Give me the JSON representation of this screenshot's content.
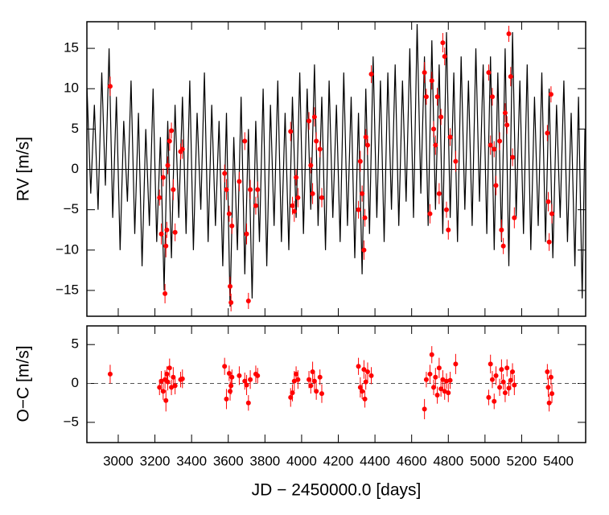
{
  "chart_data": [
    {
      "type": "scatter",
      "ylabel": "RV [m/s]",
      "xlim": [
        2829,
        5549
      ],
      "ylim": [
        -18.2,
        18.3
      ],
      "yticks": [
        {
          "value": -15,
          "label": "−15"
        },
        {
          "value": -10,
          "label": "−10"
        },
        {
          "value": -5,
          "label": "−5"
        },
        0,
        5,
        10,
        15
      ],
      "zero_line": "solid",
      "model": {
        "color": "#000000",
        "x": [
          2830,
          2850,
          2870,
          2890,
          2910,
          2930,
          2950,
          2970,
          2990,
          3010,
          3030,
          3050,
          3070,
          3090,
          3110,
          3130,
          3150,
          3170,
          3190,
          3210,
          3230,
          3250,
          3270,
          3290,
          3310,
          3330,
          3350,
          3370,
          3390,
          3410,
          3430,
          3450,
          3470,
          3490,
          3510,
          3530,
          3550,
          3570,
          3590,
          3610,
          3630,
          3650,
          3670,
          3690,
          3710,
          3730,
          3750,
          3770,
          3790,
          3810,
          3830,
          3850,
          3870,
          3890,
          3910,
          3930,
          3950,
          3970,
          3990,
          4010,
          4030,
          4050,
          4070,
          4090,
          4110,
          4130,
          4150,
          4170,
          4190,
          4210,
          4230,
          4250,
          4270,
          4290,
          4310,
          4330,
          4350,
          4370,
          4390,
          4410,
          4430,
          4450,
          4470,
          4490,
          4510,
          4530,
          4550,
          4570,
          4590,
          4610,
          4630,
          4650,
          4670,
          4690,
          4710,
          4730,
          4750,
          4770,
          4790,
          4810,
          4830,
          4850,
          4870,
          4890,
          4910,
          4930,
          4950,
          4970,
          4990,
          5010,
          5030,
          5050,
          5070,
          5090,
          5110,
          5130,
          5150,
          5170,
          5190,
          5210,
          5230,
          5250,
          5270,
          5290,
          5310,
          5330,
          5350,
          5370,
          5390,
          5410,
          5430,
          5450,
          5470,
          5490,
          5510,
          5530,
          5545
        ],
        "values": [
          10,
          -3,
          8,
          -5,
          12,
          -2,
          15,
          -6,
          9,
          -10,
          6,
          -4,
          11,
          -8,
          7,
          -12,
          5,
          -7,
          10,
          -9,
          4,
          -15,
          6,
          -11,
          8,
          -6,
          9,
          -8,
          11,
          -10,
          7,
          -5,
          12,
          -9,
          8,
          -7,
          6,
          -12,
          7,
          -17,
          4,
          -10,
          9,
          -13,
          5,
          -16,
          6,
          -9,
          10,
          -12,
          8,
          -7,
          11,
          -9,
          7,
          -10,
          9,
          -6,
          12,
          -8,
          10,
          -5,
          13,
          -7,
          9,
          -10,
          11,
          -6,
          8,
          -9,
          12,
          -7,
          9,
          -11,
          7,
          -13,
          10,
          -8,
          14,
          -6,
          11,
          -9,
          12,
          -5,
          13,
          -7,
          11,
          -4,
          15,
          -6,
          18,
          -3,
          14,
          -7,
          16,
          -5,
          13,
          -8,
          17,
          -6,
          12,
          -9,
          14,
          -5,
          11,
          -7,
          15,
          -4,
          13,
          -8,
          14,
          -10,
          12,
          -9,
          15,
          -12,
          17,
          -6,
          11,
          -8,
          13,
          -10,
          9,
          -7,
          12,
          -9,
          10,
          -11,
          8,
          -6,
          11,
          -9,
          7,
          -12,
          9,
          -16,
          5
        ]
      },
      "series": [
        {
          "color": "#ff0000",
          "x": [
            2956,
            3225,
            3235,
            3245,
            3255,
            3260,
            3265,
            3270,
            3280,
            3290,
            3300,
            3310,
            3340,
            3350,
            3580,
            3590,
            3605,
            3610,
            3615,
            3620,
            3660,
            3690,
            3700,
            3710,
            3720,
            3750,
            3760,
            3940,
            3950,
            3960,
            3970,
            3980,
            4040,
            4050,
            4060,
            4070,
            4080,
            4100,
            4110,
            4310,
            4320,
            4330,
            4340,
            4345,
            4350,
            4360,
            4380,
            4670,
            4680,
            4700,
            4710,
            4720,
            4730,
            4740,
            4750,
            4760,
            4770,
            4780,
            4790,
            4800,
            4810,
            4840,
            5020,
            5030,
            5040,
            5050,
            5060,
            5080,
            5090,
            5100,
            5110,
            5120,
            5130,
            5140,
            5150,
            5160,
            5340,
            5345,
            5350,
            5360,
            5365
          ],
          "values": [
            10.3,
            -3.5,
            -8,
            -1,
            -15.4,
            -9.5,
            -7.5,
            0.5,
            3.5,
            4.8,
            -2.5,
            -7.8,
            2.2,
            2.5,
            -0.5,
            -2.5,
            -5.5,
            -14.5,
            -16.5,
            -7,
            -1.5,
            3.5,
            -8,
            -16.3,
            -2.5,
            -4.5,
            -2.5,
            4.7,
            -4.5,
            -5.2,
            -1,
            -3.5,
            6,
            0.5,
            -3,
            6.5,
            3.5,
            2.5,
            -3.5,
            -5,
            1,
            -3,
            -10,
            -6,
            4,
            3,
            11.8,
            12,
            9,
            -5.5,
            11,
            5,
            3,
            9,
            -3,
            6.5,
            15.7,
            14,
            -5,
            -7.5,
            4,
            1,
            12,
            3,
            9,
            2.5,
            -2,
            3.5,
            -7.5,
            -9.5,
            7,
            5.5,
            16.8,
            11.5,
            1.5,
            -6,
            4.5,
            -4,
            -9,
            9.3,
            -5.5
          ],
          "errors": [
            1.2,
            1.0,
            1.3,
            1.1,
            1.2,
            1.4,
            1.0,
            1.1,
            1.2,
            1.0,
            1.3,
            1.1,
            1.0,
            1.2,
            1.1,
            1.3,
            1.0,
            1.2,
            1.1,
            1.0,
            1.2,
            1.1,
            1.3,
            1.0,
            1.2,
            1.1,
            1.0,
            1.2,
            1.1,
            1.3,
            1.0,
            1.2,
            1.1,
            1.0,
            1.3,
            1.2,
            1.1,
            1.0,
            1.2,
            1.1,
            1.3,
            1.0,
            1.2,
            1.1,
            1.0,
            1.2,
            1.1,
            1.3,
            1.0,
            1.2,
            1.1,
            1.0,
            1.2,
            1.1,
            1.3,
            1.0,
            1.2,
            1.1,
            1.0,
            1.2,
            1.1,
            1.3,
            1.0,
            1.2,
            1.1,
            1.0,
            1.2,
            1.1,
            1.3,
            1.0,
            1.2,
            1.1,
            1.0,
            1.2,
            1.1,
            1.3,
            1.0,
            1.2,
            1.1,
            1.0,
            1.2
          ]
        }
      ]
    },
    {
      "type": "scatter",
      "ylabel": "O−C [m/s]",
      "xlabel": "JD − 2450000.0 [days]",
      "xlim": [
        2829,
        5549
      ],
      "ylim": [
        -7.6,
        7.4
      ],
      "xticks": [
        3000,
        3200,
        3400,
        3600,
        3800,
        4000,
        4200,
        4400,
        4600,
        4800,
        5000,
        5200,
        5400
      ],
      "yticks": [
        {
          "value": -5,
          "label": "−5"
        },
        0,
        5
      ],
      "zero_line": "dashed",
      "series": [
        {
          "color": "#ff0000",
          "x": [
            2956,
            3225,
            3235,
            3245,
            3255,
            3260,
            3265,
            3270,
            3280,
            3290,
            3300,
            3310,
            3340,
            3350,
            3580,
            3590,
            3605,
            3610,
            3615,
            3620,
            3660,
            3690,
            3700,
            3710,
            3720,
            3750,
            3760,
            3940,
            3950,
            3960,
            3970,
            3980,
            4040,
            4050,
            4060,
            4070,
            4080,
            4100,
            4110,
            4310,
            4320,
            4330,
            4340,
            4345,
            4350,
            4360,
            4380,
            4670,
            4680,
            4700,
            4710,
            4720,
            4730,
            4740,
            4750,
            4760,
            4770,
            4780,
            4790,
            4800,
            4810,
            4840,
            5020,
            5030,
            5040,
            5050,
            5060,
            5080,
            5090,
            5100,
            5110,
            5120,
            5130,
            5140,
            5150,
            5160,
            5340,
            5345,
            5350,
            5360,
            5365
          ],
          "values": [
            1.2,
            -0.5,
            0.3,
            -1.0,
            0.5,
            -2.2,
            1.2,
            0.2,
            2.0,
            -0.5,
            0.8,
            -0.3,
            0.5,
            0.6,
            2.2,
            -2.0,
            1.3,
            -1.0,
            -0.3,
            0.8,
            1.0,
            0.3,
            -0.2,
            -2.5,
            0.5,
            1.2,
            1.0,
            -1.8,
            -1.2,
            0.3,
            1.2,
            0.5,
            0.5,
            -0.3,
            1.5,
            0.3,
            -1.0,
            0.8,
            -1.3,
            2.2,
            -0.5,
            -1.0,
            1.8,
            -2.0,
            0.2,
            1.5,
            1.0,
            -3.3,
            0.5,
            1.2,
            3.7,
            -0.5,
            0.8,
            -1.5,
            2.0,
            -0.7,
            0.5,
            -1.0,
            0.3,
            -1.2,
            0.4,
            2.5,
            -1.8,
            2.5,
            0.5,
            -2.3,
            1.0,
            -0.5,
            1.8,
            0.2,
            -1.2,
            2.0,
            -0.6,
            0.4,
            1.5,
            -0.2,
            1.5,
            -0.5,
            -2.5,
            0.8,
            -1.3
          ],
          "errors": [
            1.2,
            1.0,
            1.3,
            1.1,
            1.2,
            1.4,
            1.0,
            1.1,
            1.2,
            1.0,
            1.3,
            1.1,
            1.0,
            1.2,
            1.1,
            1.3,
            1.0,
            1.2,
            1.1,
            1.0,
            1.2,
            1.1,
            1.3,
            1.0,
            1.2,
            1.1,
            1.0,
            1.2,
            1.1,
            1.3,
            1.0,
            1.2,
            1.1,
            1.0,
            1.3,
            1.2,
            1.1,
            1.0,
            1.2,
            1.1,
            1.3,
            1.0,
            1.2,
            1.1,
            1.0,
            1.2,
            1.1,
            1.3,
            1.0,
            1.2,
            1.1,
            1.0,
            1.2,
            1.1,
            1.3,
            1.0,
            1.2,
            1.1,
            1.0,
            1.2,
            1.1,
            1.3,
            1.0,
            1.2,
            1.1,
            1.0,
            1.2,
            1.1,
            1.3,
            1.0,
            1.2,
            1.1,
            1.0,
            1.2,
            1.1,
            1.3,
            1.0,
            1.2,
            1.1,
            1.0,
            1.2
          ]
        }
      ]
    }
  ]
}
